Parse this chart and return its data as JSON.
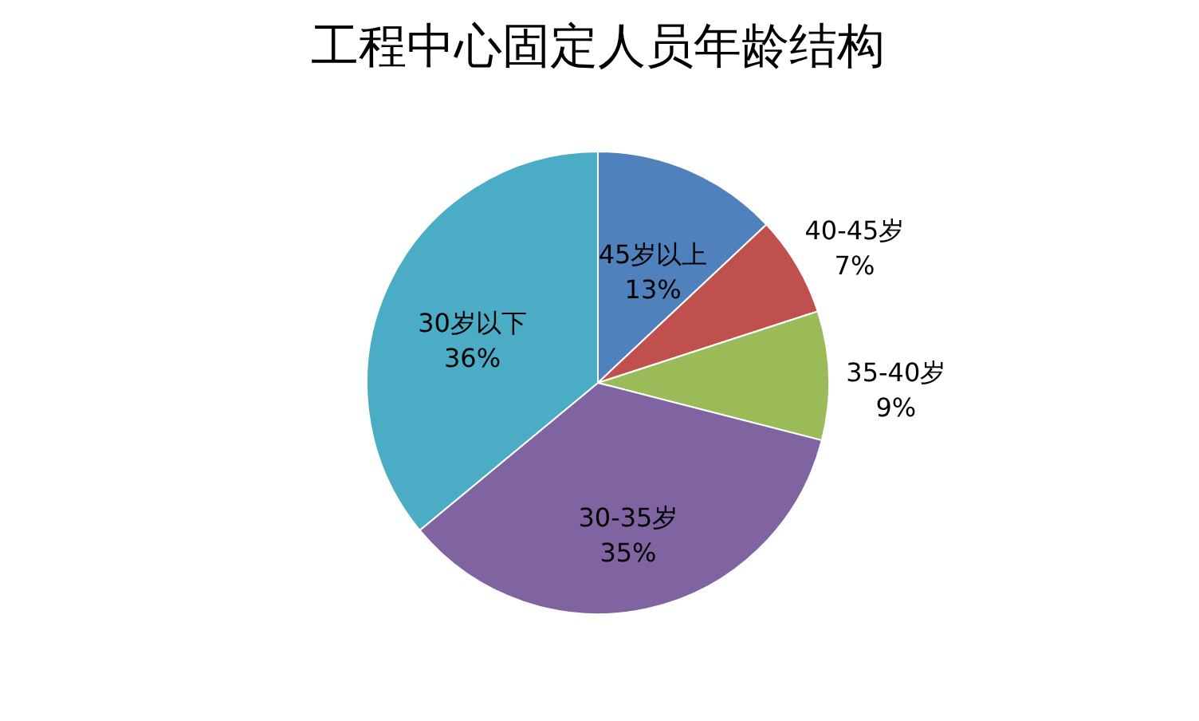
{
  "chart_data": {
    "type": "pie",
    "title": "工程中心固定人员年龄结构",
    "categories": [
      "45岁以上",
      "40-45岁",
      "35-40岁",
      "30-35岁",
      "30岁以下"
    ],
    "values": [
      13,
      7,
      9,
      35,
      36
    ],
    "value_labels": [
      "13%",
      "7%",
      "9%",
      "35%",
      "36%"
    ],
    "colors": [
      "#4f81bd",
      "#c0504d",
      "#9bbb59",
      "#8064a2",
      "#4bacc6"
    ],
    "legend": false
  }
}
